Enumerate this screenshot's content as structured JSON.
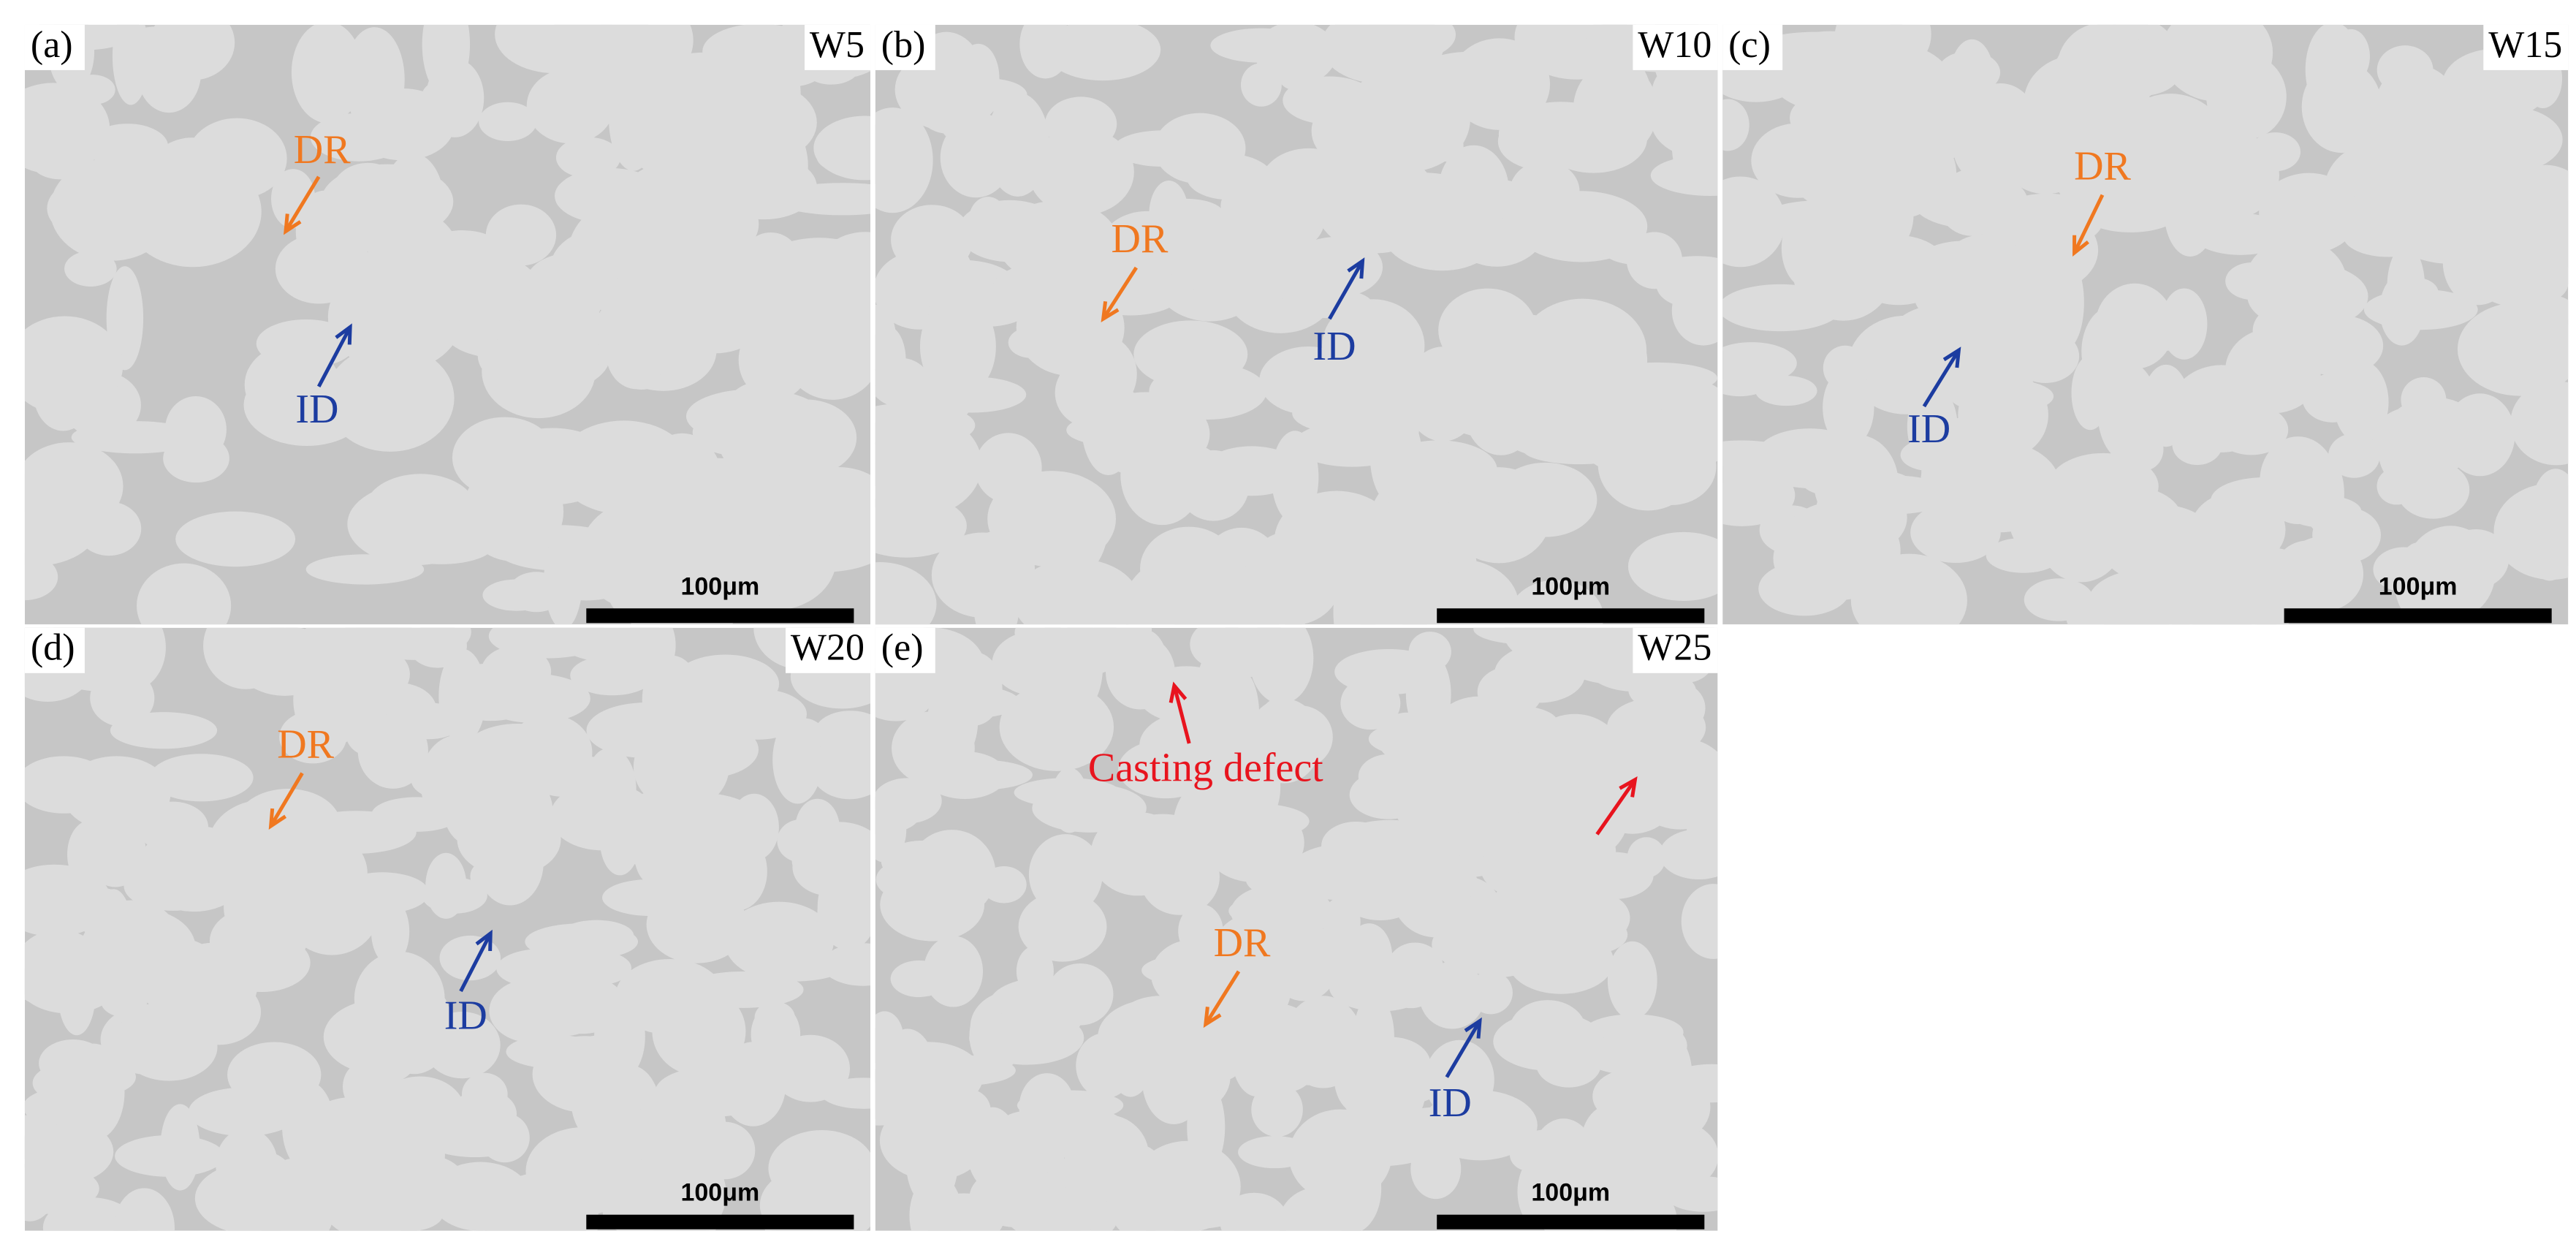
{
  "panels": [
    {
      "label": "(a)",
      "sample": "W5",
      "scale_bar": "100μm",
      "annotations": [
        {
          "text": "DR",
          "color": "#f07820"
        },
        {
          "text": "ID",
          "color": "#1c3ca0"
        }
      ]
    },
    {
      "label": "(b)",
      "sample": "W10",
      "scale_bar": "100μm",
      "annotations": [
        {
          "text": "DR",
          "color": "#f07820"
        },
        {
          "text": "ID",
          "color": "#1c3ca0"
        }
      ]
    },
    {
      "label": "(c)",
      "sample": "W15",
      "scale_bar": "100μm",
      "annotations": [
        {
          "text": "DR",
          "color": "#f07820"
        },
        {
          "text": "ID",
          "color": "#1c3ca0"
        }
      ]
    },
    {
      "label": "(d)",
      "sample": "W20",
      "scale_bar": "100μm",
      "annotations": [
        {
          "text": "DR",
          "color": "#f07820"
        },
        {
          "text": "ID",
          "color": "#1c3ca0"
        }
      ]
    },
    {
      "label": "(e)",
      "sample": "W25",
      "scale_bar": "100μm",
      "annotations": [
        {
          "text": "Casting defect",
          "color": "#e8141e"
        },
        {
          "text": "DR",
          "color": "#f07820"
        },
        {
          "text": "ID",
          "color": "#1c3ca0"
        }
      ]
    }
  ]
}
